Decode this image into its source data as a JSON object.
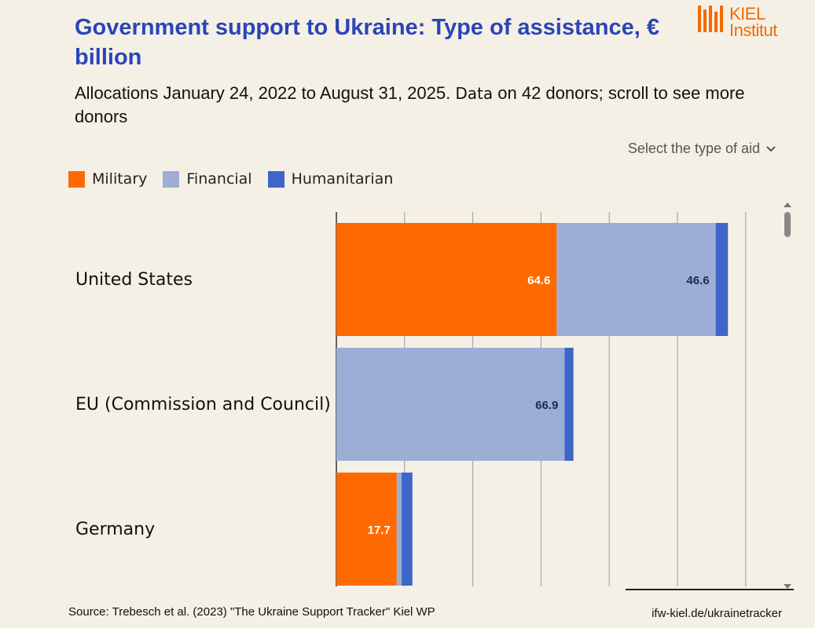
{
  "title": "Government support to Ukraine: Type of assistance, € billion",
  "subtitle_main": "Allocations January 24, 2022 to August 31, 2025.",
  "subtitle_data": "Data",
  "subtitle_rest": "on 42 donors; scroll to see more donors",
  "logo": {
    "line1": "KIEL",
    "line2": "Institut",
    "color": "#f26b00"
  },
  "selector_label": "Select the type of aid",
  "legend": [
    {
      "label": "Military",
      "color": "#ff6a00"
    },
    {
      "label": "Financial",
      "color": "#9caed6"
    },
    {
      "label": "Humanitarian",
      "color": "#3e66c8"
    }
  ],
  "chart_data": {
    "type": "bar",
    "orientation": "horizontal",
    "stacked": true,
    "categories": [
      "United States",
      "EU (Commission and Council)",
      "Germany"
    ],
    "series": [
      {
        "name": "Military",
        "color": "#ff6a00",
        "values": [
          64.6,
          0,
          17.7
        ],
        "labels": [
          "64.6",
          "",
          "17.7"
        ]
      },
      {
        "name": "Financial",
        "color": "#9caed6",
        "values": [
          46.6,
          66.9,
          1.4
        ],
        "labels": [
          "46.6",
          "66.9",
          ""
        ]
      },
      {
        "name": "Humanitarian",
        "color": "#3e66c8",
        "values": [
          3.6,
          2.6,
          3.2
        ],
        "labels": [
          "",
          "",
          ""
        ]
      }
    ],
    "xlim": [
      0,
      130
    ],
    "gridlines": [
      20,
      40,
      60,
      80,
      100,
      120
    ],
    "grid": true
  },
  "footer": {
    "source": "Source: Trebesch et al. (2023) \"The Ukraine Support Tracker\" Kiel WP",
    "url": "ifw-kiel.de/ukrainetracker"
  }
}
